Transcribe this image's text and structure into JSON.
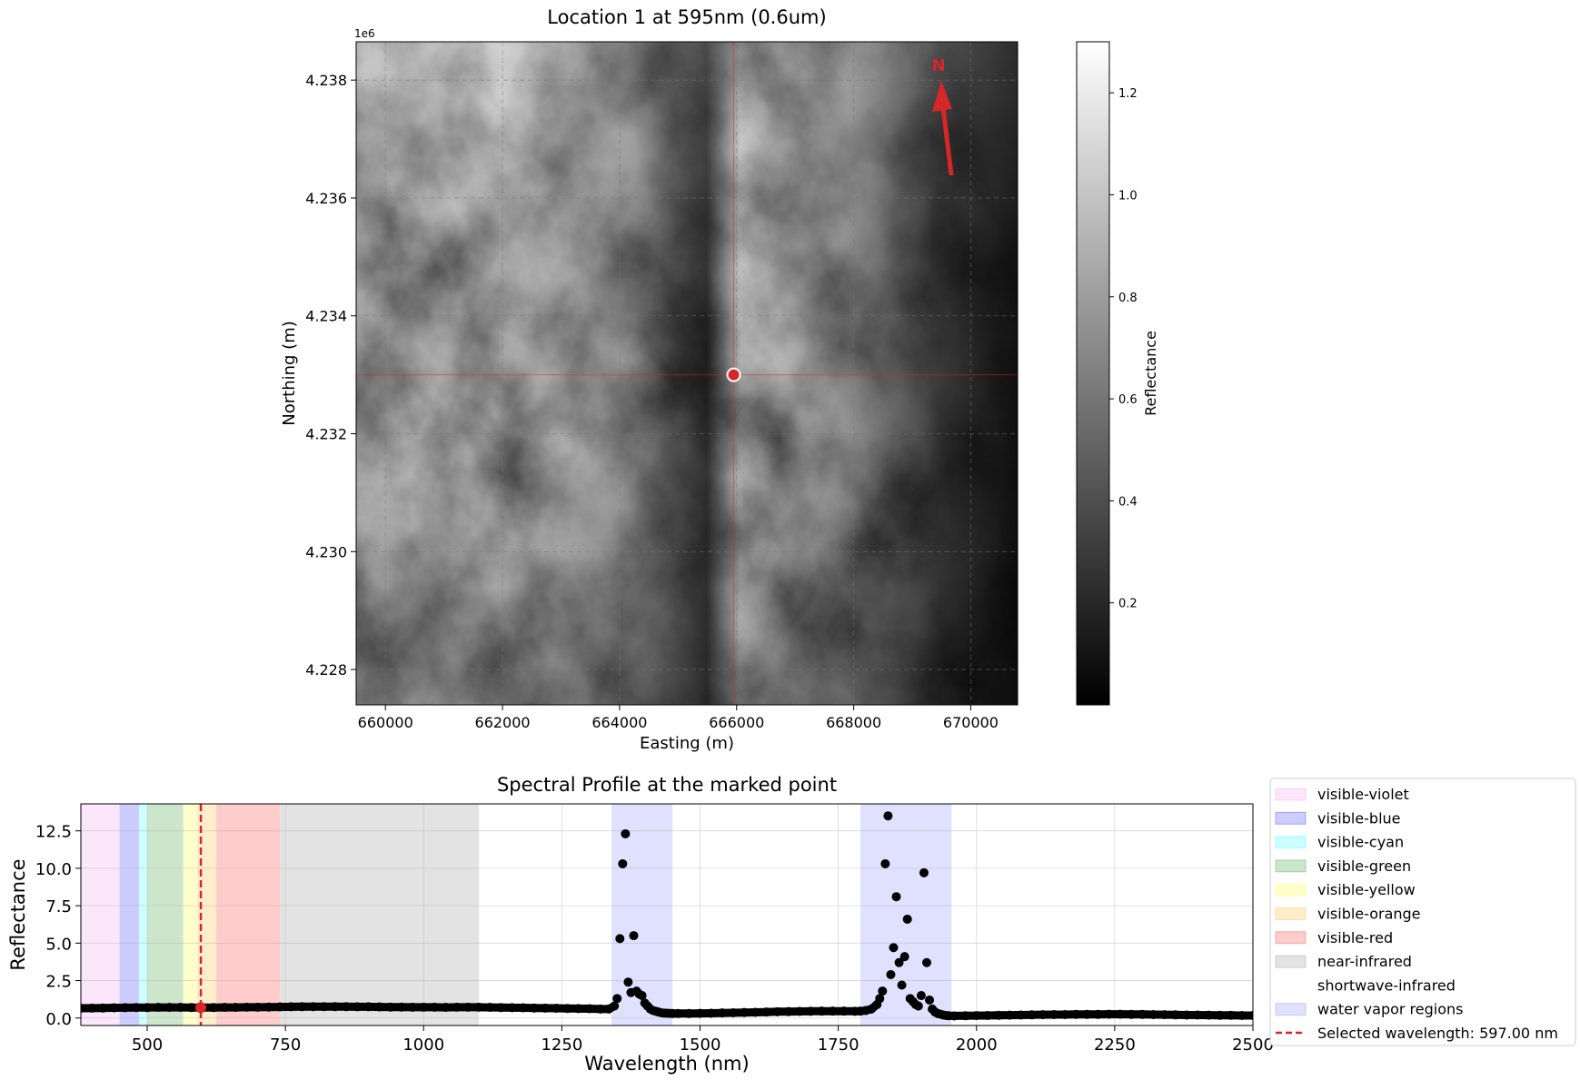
{
  "chart_data": [
    {
      "type": "heatmap",
      "title": "Location 1 at 595nm (0.6um)",
      "xlabel": "Easting (m)",
      "ylabel": "Northing (m)",
      "xlim": [
        659500,
        670800
      ],
      "ylim": [
        4227400,
        4238650
      ],
      "xticks": [
        660000,
        662000,
        664000,
        666000,
        668000,
        670000
      ],
      "xtick_labels": [
        "660000",
        "662000",
        "664000",
        "666000",
        "668000",
        "670000"
      ],
      "yticks": [
        4228000,
        4230000,
        4232000,
        4234000,
        4236000,
        4238000
      ],
      "ytick_labels": [
        "4.228",
        "4.230",
        "4.232",
        "4.234",
        "4.236",
        "4.238"
      ],
      "y_offset_label": "1e6",
      "colormap": "gray",
      "colorbar": {
        "label": "Reflectance",
        "vmin": 0.0,
        "vmax": 1.3,
        "ticks": [
          0.2,
          0.4,
          0.6,
          0.8,
          1.0,
          1.2
        ],
        "tick_labels": [
          "0.2",
          "0.4",
          "0.6",
          "0.8",
          "1.0",
          "1.2"
        ]
      },
      "marked_point": {
        "x": 665950,
        "y": 4233000,
        "color": "#d62728"
      },
      "north_arrow": {
        "label": "N",
        "color": "#d62728"
      },
      "grid": true
    },
    {
      "type": "scatter",
      "title": "Spectral Profile at the marked point",
      "xlabel": "Wavelength (nm)",
      "ylabel": "Reflectance",
      "xlim": [
        380,
        2500
      ],
      "ylim": [
        -0.5,
        14.3
      ],
      "xticks": [
        500,
        750,
        1000,
        1250,
        1500,
        1750,
        2000,
        2250,
        2500
      ],
      "xtick_labels": [
        "500",
        "750",
        "1000",
        "1250",
        "1500",
        "1750",
        "2000",
        "2250",
        "2500"
      ],
      "yticks": [
        0.0,
        2.5,
        5.0,
        7.5,
        10.0,
        12.5
      ],
      "ytick_labels": [
        "0.0",
        "2.5",
        "5.0",
        "7.5",
        "10.0",
        "12.5"
      ],
      "grid": true,
      "regions": [
        {
          "name": "visible-violet",
          "range": [
            380,
            450
          ],
          "color": "#ee82ee",
          "alpha": 0.2
        },
        {
          "name": "visible-blue",
          "range": [
            450,
            485
          ],
          "color": "#0000ff",
          "alpha": 0.2
        },
        {
          "name": "visible-cyan",
          "range": [
            485,
            500
          ],
          "color": "#00ffff",
          "alpha": 0.2
        },
        {
          "name": "visible-green",
          "range": [
            500,
            565
          ],
          "color": "#008000",
          "alpha": 0.2
        },
        {
          "name": "visible-yellow",
          "range": [
            565,
            590
          ],
          "color": "#ffff00",
          "alpha": 0.2
        },
        {
          "name": "visible-orange",
          "range": [
            590,
            625
          ],
          "color": "#ffa500",
          "alpha": 0.2
        },
        {
          "name": "visible-red",
          "range": [
            625,
            740
          ],
          "color": "#ff0000",
          "alpha": 0.2
        },
        {
          "name": "near-infrared",
          "range": [
            740,
            1100
          ],
          "color": "#808080",
          "alpha": 0.22
        },
        {
          "name": "shortwave-infrared",
          "range": [
            1100,
            2500
          ],
          "color": "#ffffff",
          "alpha": 0.0
        },
        {
          "name": "water vapor regions",
          "ranges": [
            [
              1340,
              1450
            ],
            [
              1790,
              1955
            ]
          ],
          "color": "#0000ff",
          "alpha": 0.12
        }
      ],
      "selected_wavelength": {
        "x": 597,
        "label": "Selected wavelength: 597.00 nm",
        "color": "#d62728"
      },
      "selected_point": {
        "x": 597,
        "y": 0.7
      },
      "series": [
        {
          "marker_color": "#000000",
          "x": [
            380,
            400,
            420,
            440,
            460,
            480,
            500,
            520,
            540,
            560,
            580,
            600,
            620,
            640,
            660,
            680,
            700,
            720,
            740,
            760,
            780,
            800,
            820,
            840,
            860,
            880,
            900,
            920,
            940,
            960,
            980,
            1000,
            1020,
            1040,
            1060,
            1080,
            1100,
            1120,
            1140,
            1160,
            1180,
            1200,
            1220,
            1240,
            1260,
            1280,
            1300,
            1320,
            1335,
            1345,
            1350,
            1355,
            1360,
            1365,
            1370,
            1375,
            1380,
            1385,
            1390,
            1395,
            1400,
            1405,
            1410,
            1415,
            1420,
            1425,
            1430,
            1435,
            1440,
            1445,
            1450,
            1460,
            1480,
            1500,
            1520,
            1540,
            1560,
            1580,
            1600,
            1620,
            1640,
            1660,
            1680,
            1700,
            1720,
            1740,
            1760,
            1780,
            1790,
            1800,
            1810,
            1820,
            1825,
            1830,
            1835,
            1840,
            1845,
            1850,
            1855,
            1860,
            1865,
            1870,
            1875,
            1880,
            1885,
            1890,
            1895,
            1900,
            1905,
            1910,
            1915,
            1920,
            1925,
            1930,
            1935,
            1940,
            1945,
            1950,
            1960,
            1980,
            2000,
            2020,
            2040,
            2060,
            2080,
            2100,
            2120,
            2140,
            2160,
            2180,
            2200,
            2220,
            2240,
            2260,
            2280,
            2300,
            2320,
            2340,
            2360,
            2380,
            2400,
            2420,
            2440,
            2460,
            2480,
            2500
          ],
          "y": [
            0.65,
            0.66,
            0.67,
            0.68,
            0.69,
            0.7,
            0.7,
            0.71,
            0.71,
            0.71,
            0.7,
            0.7,
            0.7,
            0.71,
            0.71,
            0.72,
            0.72,
            0.73,
            0.74,
            0.75,
            0.76,
            0.76,
            0.76,
            0.76,
            0.76,
            0.75,
            0.75,
            0.74,
            0.73,
            0.73,
            0.72,
            0.72,
            0.72,
            0.71,
            0.72,
            0.72,
            0.72,
            0.71,
            0.7,
            0.69,
            0.68,
            0.67,
            0.66,
            0.65,
            0.64,
            0.63,
            0.62,
            0.6,
            0.6,
            0.8,
            1.3,
            5.3,
            10.3,
            12.3,
            2.4,
            1.7,
            5.5,
            1.8,
            1.6,
            1.5,
            1.0,
            0.8,
            0.6,
            0.5,
            0.45,
            0.4,
            0.35,
            0.33,
            0.32,
            0.31,
            0.3,
            0.3,
            0.3,
            0.31,
            0.32,
            0.34,
            0.35,
            0.37,
            0.38,
            0.4,
            0.42,
            0.43,
            0.44,
            0.45,
            0.46,
            0.46,
            0.46,
            0.45,
            0.46,
            0.5,
            0.6,
            0.9,
            1.3,
            1.8,
            10.3,
            13.5,
            2.9,
            4.7,
            8.1,
            3.7,
            2.2,
            4.1,
            6.6,
            1.3,
            1.1,
            0.9,
            0.8,
            1.5,
            9.7,
            3.7,
            1.2,
            0.6,
            0.4,
            0.3,
            0.25,
            0.2,
            0.17,
            0.15,
            0.14,
            0.15,
            0.16,
            0.17,
            0.18,
            0.19,
            0.2,
            0.21,
            0.22,
            0.23,
            0.23,
            0.24,
            0.24,
            0.24,
            0.25,
            0.25,
            0.24,
            0.24,
            0.23,
            0.22,
            0.21,
            0.2,
            0.2,
            0.19,
            0.18,
            0.18,
            0.17,
            0.17
          ]
        }
      ]
    }
  ]
}
